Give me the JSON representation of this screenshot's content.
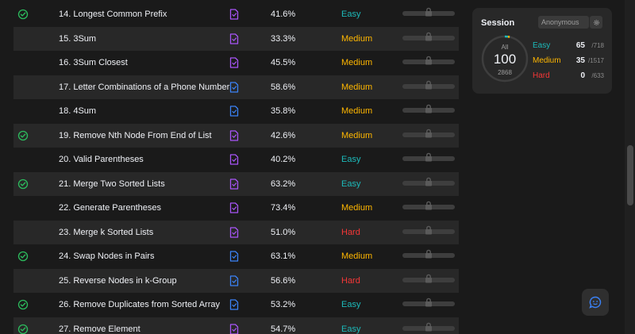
{
  "colors": {
    "easy": "#1cbaba",
    "medium": "#ffb700",
    "hard": "#f63737",
    "solved_check": "#2cbb5d",
    "solution_purple": "#a855f7",
    "solution_blue": "#3b82f6"
  },
  "problems": [
    {
      "title": "14. Longest Common Prefix",
      "solved": true,
      "solution": "purple",
      "acceptance": "41.6%",
      "difficulty": "Easy"
    },
    {
      "title": "15. 3Sum",
      "solved": false,
      "solution": "purple",
      "acceptance": "33.3%",
      "difficulty": "Medium"
    },
    {
      "title": "16. 3Sum Closest",
      "solved": false,
      "solution": "purple",
      "acceptance": "45.5%",
      "difficulty": "Medium"
    },
    {
      "title": "17. Letter Combinations of a Phone Number",
      "solved": false,
      "solution": "blue",
      "acceptance": "58.6%",
      "difficulty": "Medium"
    },
    {
      "title": "18. 4Sum",
      "solved": false,
      "solution": "blue",
      "acceptance": "35.8%",
      "difficulty": "Medium"
    },
    {
      "title": "19. Remove Nth Node From End of List",
      "solved": true,
      "solution": "purple",
      "acceptance": "42.6%",
      "difficulty": "Medium"
    },
    {
      "title": "20. Valid Parentheses",
      "solved": false,
      "solution": "purple",
      "acceptance": "40.2%",
      "difficulty": "Easy"
    },
    {
      "title": "21. Merge Two Sorted Lists",
      "solved": true,
      "solution": "purple",
      "acceptance": "63.2%",
      "difficulty": "Easy"
    },
    {
      "title": "22. Generate Parentheses",
      "solved": false,
      "solution": "purple",
      "acceptance": "73.4%",
      "difficulty": "Medium"
    },
    {
      "title": "23. Merge k Sorted Lists",
      "solved": false,
      "solution": "purple",
      "acceptance": "51.0%",
      "difficulty": "Hard"
    },
    {
      "title": "24. Swap Nodes in Pairs",
      "solved": true,
      "solution": "blue",
      "acceptance": "63.1%",
      "difficulty": "Medium"
    },
    {
      "title": "25. Reverse Nodes in k-Group",
      "solved": false,
      "solution": "blue",
      "acceptance": "56.6%",
      "difficulty": "Hard"
    },
    {
      "title": "26. Remove Duplicates from Sorted Array",
      "solved": true,
      "solution": "blue",
      "acceptance": "53.2%",
      "difficulty": "Easy"
    },
    {
      "title": "27. Remove Element",
      "solved": true,
      "solution": "purple",
      "acceptance": "54.7%",
      "difficulty": "Easy"
    }
  ],
  "session": {
    "title": "Session",
    "selected": "Anonymous",
    "ring": {
      "label": "All",
      "solved": "100",
      "total": "2868"
    },
    "stats": [
      {
        "label": "Easy",
        "solved": "65",
        "total": "/718"
      },
      {
        "label": "Medium",
        "solved": "35",
        "total": "/1517"
      },
      {
        "label": "Hard",
        "solved": "0",
        "total": "/633"
      }
    ]
  }
}
